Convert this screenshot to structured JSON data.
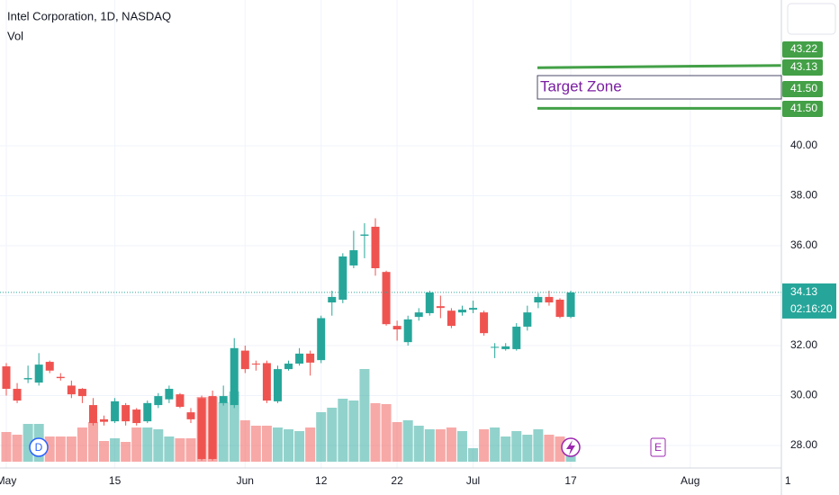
{
  "chart_data": {
    "type": "candlestick",
    "title": "Intel Corporation, 1D, NASDAQ",
    "volume_label": "Vol",
    "up_color": "#26a69a",
    "down_color": "#ef5350",
    "open": [
      31.17,
      30.27,
      30.65,
      30.52,
      31.35,
      30.75,
      30.4,
      30.27,
      29.62,
      29.05,
      28.97,
      29.62,
      29.44,
      28.97,
      29.62,
      29.85,
      30.05,
      29.33,
      29.9,
      29.98,
      29.7,
      29.62,
      31.8,
      31.28,
      31.3,
      29.77,
      31.06,
      31.28,
      31.68,
      31.42,
      33.73,
      33.84,
      35.21,
      36.4,
      36.76,
      34.95,
      32.79,
      32.14,
      33.15,
      33.3,
      33.58,
      33.4,
      33.33,
      33.44,
      33.33,
      31.93,
      31.86,
      31.86,
      32.76,
      33.73,
      33.95,
      33.84,
      33.15
    ],
    "high": [
      31.3,
      30.5,
      31.2,
      31.7,
      31.4,
      30.9,
      30.6,
      30.3,
      29.9,
      29.2,
      29.9,
      29.7,
      29.5,
      29.8,
      30.1,
      30.4,
      30.1,
      29.5,
      30.0,
      30.2,
      30.4,
      32.3,
      32.0,
      31.4,
      31.4,
      31.2,
      31.4,
      31.9,
      31.8,
      33.2,
      34.2,
      35.7,
      36.6,
      36.9,
      37.1,
      35.0,
      33.0,
      33.2,
      33.5,
      34.2,
      34.0,
      33.5,
      33.6,
      33.8,
      33.4,
      32.1,
      32.1,
      32.9,
      33.6,
      34.1,
      34.2,
      33.9,
      34.2
    ],
    "low": [
      30.0,
      29.7,
      30.5,
      30.4,
      30.9,
      30.6,
      29.9,
      29.7,
      28.8,
      28.8,
      28.9,
      28.8,
      28.8,
      28.9,
      29.5,
      29.7,
      29.5,
      28.9,
      27.4,
      27.4,
      29.6,
      29.5,
      30.9,
      31.0,
      29.7,
      29.7,
      31.0,
      31.2,
      30.8,
      31.3,
      33.2,
      33.7,
      35.1,
      35.5,
      34.8,
      32.8,
      32.2,
      32.0,
      33.0,
      33.2,
      33.1,
      32.7,
      33.2,
      33.3,
      32.4,
      31.5,
      31.8,
      31.8,
      32.6,
      33.5,
      33.6,
      33.1,
      33.1
    ],
    "close": [
      30.27,
      29.8,
      30.7,
      31.24,
      31.0,
      30.7,
      30.05,
      29.98,
      28.9,
      28.95,
      29.77,
      28.97,
      28.9,
      29.7,
      29.98,
      30.27,
      29.55,
      29.05,
      27.46,
      27.46,
      29.98,
      31.9,
      31.06,
      31.25,
      29.8,
      31.06,
      31.28,
      31.68,
      31.32,
      33.1,
      33.95,
      35.57,
      35.82,
      36.45,
      35.1,
      32.86,
      32.65,
      33.05,
      33.33,
      34.13,
      33.51,
      32.79,
      33.44,
      33.51,
      32.5,
      31.95,
      31.97,
      32.76,
      33.33,
      33.95,
      33.73,
      33.15,
      34.13
    ],
    "volume": [
      33,
      30,
      42,
      42,
      28,
      28,
      28,
      38,
      44,
      23,
      26,
      22,
      38,
      38,
      36,
      28,
      26,
      26,
      72,
      72,
      66,
      78,
      46,
      40,
      40,
      38,
      36,
      34,
      38,
      55,
      60,
      70,
      68,
      103,
      65,
      64,
      44,
      46,
      40,
      36,
      36,
      38,
      34,
      15,
      36,
      38,
      28,
      34,
      30,
      36,
      30,
      28,
      24
    ],
    "xlim": [
      -0.58,
      71.4
    ],
    "xticks": [
      {
        "value": 0,
        "label": "May"
      },
      {
        "value": 10,
        "label": "15"
      },
      {
        "value": 22,
        "label": "Jun"
      },
      {
        "value": 29,
        "label": "12"
      },
      {
        "value": 36,
        "label": "22"
      },
      {
        "value": 43,
        "label": "Jul"
      },
      {
        "value": 52,
        "label": "17"
      },
      {
        "value": 63,
        "label": "Aug"
      },
      {
        "value": 72,
        "label": "1"
      }
    ],
    "ylim": [
      27.1,
      45.84
    ],
    "yticks": [
      {
        "value": 28,
        "label": "28.00"
      },
      {
        "value": 30,
        "label": "30.00"
      },
      {
        "value": 32,
        "label": "32.00"
      },
      {
        "value": 34,
        "label": "34.00"
      },
      {
        "value": 36,
        "label": "36.00"
      },
      {
        "value": 38,
        "label": "38.00"
      },
      {
        "value": 40,
        "label": "40.00"
      }
    ],
    "grid": true,
    "last_price": 34.13,
    "countdown": "02:16:20",
    "price_lines": [
      {
        "color": "#43a047",
        "start": 43.13,
        "end": 43.22
      },
      {
        "color": "#43a047",
        "start": {
          "value": 41.5,
          "label": "41.50"
        },
        "end": {
          "value": 41.5,
          "label": "41.50"
        }
      }
    ],
    "annotation": "Target Zone",
    "events": [
      {
        "label": "D"
      },
      {
        "label": "E"
      }
    ]
  }
}
